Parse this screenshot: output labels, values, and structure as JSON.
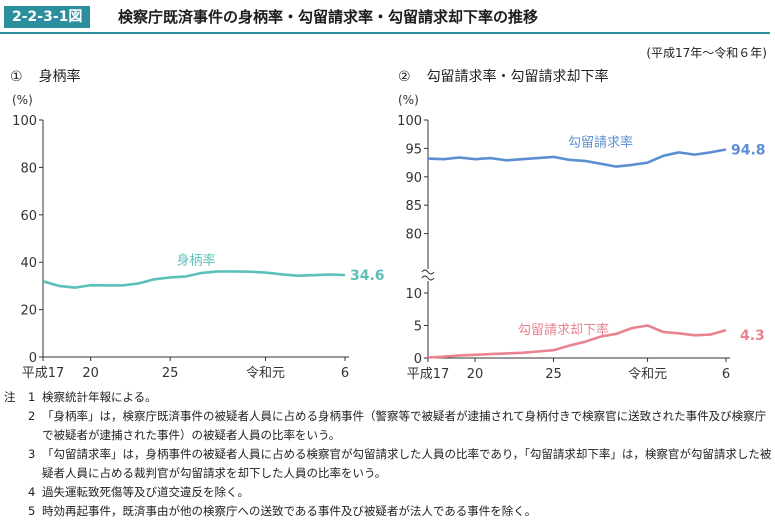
{
  "header": {
    "badge": "2-2-3-1図",
    "title": "検察庁既済事件の身柄率・勾留請求率・勾留請求却下率の推移",
    "period": "(平成17年～令和６年)"
  },
  "chart_data": [
    {
      "type": "line",
      "panel_no": "①",
      "panel_title": "身柄率",
      "unit_label": "(%)",
      "ylim": [
        0,
        100
      ],
      "yticks": [
        "0",
        "20",
        "40",
        "60",
        "80",
        "100"
      ],
      "xticks": [
        "平成17",
        "20",
        "25",
        "令和元",
        "6"
      ],
      "x": [
        "H17",
        "H18",
        "H19",
        "H20",
        "H21",
        "H22",
        "H23",
        "H24",
        "H25",
        "H26",
        "H27",
        "H28",
        "H29",
        "H30",
        "R1",
        "R2",
        "R3",
        "R4",
        "R5",
        "R6"
      ],
      "series": [
        {
          "name": "身柄率",
          "color": "#5cc0b8",
          "values": [
            32.0,
            30.0,
            29.3,
            30.3,
            30.2,
            30.2,
            31.0,
            32.8,
            33.6,
            34.0,
            35.5,
            36.1,
            36.1,
            36.0,
            35.6,
            34.9,
            34.3,
            34.5,
            34.8,
            34.6
          ],
          "end_label": "34.6"
        }
      ]
    },
    {
      "type": "line",
      "panel_no": "②",
      "panel_title": "勾留請求率・勾留請求却下率",
      "unit_label": "(%)",
      "axis_break": true,
      "upper_ylim": [
        75,
        100
      ],
      "upper_yticks": [
        "80",
        "85",
        "90",
        "95",
        "100"
      ],
      "lower_ylim": [
        0,
        10
      ],
      "lower_yticks": [
        "0",
        "5",
        "10"
      ],
      "xticks": [
        "平成17",
        "20",
        "25",
        "令和元",
        "6"
      ],
      "x": [
        "H17",
        "H18",
        "H19",
        "H20",
        "H21",
        "H22",
        "H23",
        "H24",
        "H25",
        "H26",
        "H27",
        "H28",
        "H29",
        "H30",
        "R1",
        "R2",
        "R3",
        "R4",
        "R5",
        "R6"
      ],
      "series": [
        {
          "name": "勾留請求率",
          "color": "#5b8fd1",
          "values": [
            93.2,
            93.1,
            93.4,
            93.1,
            93.3,
            92.9,
            93.1,
            93.3,
            93.5,
            93.0,
            92.8,
            92.3,
            91.8,
            92.1,
            92.5,
            93.7,
            94.3,
            93.9,
            94.3,
            94.8
          ],
          "end_label": "94.8"
        },
        {
          "name": "勾留請求却下率",
          "color": "#e98390",
          "values": [
            0.1,
            0.2,
            0.4,
            0.5,
            0.6,
            0.7,
            0.8,
            1.0,
            1.2,
            1.9,
            2.5,
            3.3,
            3.7,
            4.6,
            5.0,
            4.0,
            3.8,
            3.5,
            3.6,
            4.3
          ],
          "end_label": "4.3"
        }
      ]
    }
  ],
  "notes": [
    {
      "label": "注",
      "num": "1",
      "text": "検察統計年報による。"
    },
    {
      "label": "",
      "num": "2",
      "text": "「身柄率」は，検察庁既済事件の被疑者人員に占める身柄事件（警察等で被疑者が逮捕されて身柄付きで検察官に送致された事件及び検察庁で被疑者が逮捕された事件）の被疑者人員の比率をいう。"
    },
    {
      "label": "",
      "num": "3",
      "text": "「勾留請求率」は，身柄事件の被疑者人員に占める検察官が勾留請求した人員の比率であり，「勾留請求却下率」は，検察官が勾留請求した被疑者人員に占める裁判官が勾留請求を却下した人員の比率をいう。"
    },
    {
      "label": "",
      "num": "4",
      "text": "過失運転致死傷等及び道交違反を除く。"
    },
    {
      "label": "",
      "num": "5",
      "text": "時効再起事件，既済事由が他の検察庁への送致である事件及び被疑者が法人である事件を除く。"
    }
  ]
}
